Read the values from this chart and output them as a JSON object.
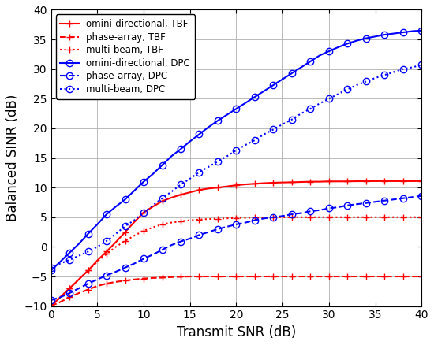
{
  "title": "",
  "xlabel": "Transmit SNR (dB)",
  "ylabel": "Balanced SINR (dB)",
  "xlim": [
    0,
    40
  ],
  "ylim": [
    -10,
    40
  ],
  "xticks": [
    0,
    5,
    10,
    15,
    20,
    25,
    30,
    35,
    40
  ],
  "yticks": [
    -10,
    -5,
    0,
    5,
    10,
    15,
    20,
    25,
    30,
    35,
    40
  ],
  "snr": [
    0,
    1,
    2,
    3,
    4,
    5,
    6,
    7,
    8,
    9,
    10,
    11,
    12,
    13,
    14,
    15,
    16,
    17,
    18,
    19,
    20,
    21,
    22,
    23,
    24,
    25,
    26,
    27,
    28,
    29,
    30,
    31,
    32,
    33,
    34,
    35,
    36,
    37,
    38,
    39,
    40
  ],
  "red_solid": [
    -10.0,
    -8.5,
    -7.0,
    -5.5,
    -4.0,
    -2.3,
    -0.8,
    0.8,
    2.5,
    4.2,
    5.8,
    6.8,
    7.7,
    8.3,
    8.8,
    9.2,
    9.6,
    9.85,
    10.0,
    10.2,
    10.4,
    10.55,
    10.65,
    10.75,
    10.82,
    10.87,
    10.9,
    10.95,
    11.0,
    11.0,
    11.05,
    11.05,
    11.05,
    11.08,
    11.08,
    11.1,
    11.1,
    11.1,
    11.1,
    11.1,
    11.1
  ],
  "red_dashed": [
    -10.0,
    -9.3,
    -8.5,
    -7.8,
    -7.2,
    -6.6,
    -6.2,
    -5.9,
    -5.7,
    -5.5,
    -5.35,
    -5.25,
    -5.18,
    -5.1,
    -5.05,
    -5.0,
    -5.0,
    -5.0,
    -5.0,
    -5.0,
    -5.0,
    -5.0,
    -5.0,
    -5.0,
    -5.0,
    -5.0,
    -5.0,
    -5.0,
    -5.0,
    -5.0,
    -5.0,
    -5.0,
    -5.0,
    -5.0,
    -5.0,
    -5.0,
    -5.0,
    -5.0,
    -5.0,
    -5.0,
    -5.0
  ],
  "red_dotted": [
    -10.0,
    -8.5,
    -7.0,
    -5.5,
    -4.0,
    -2.5,
    -1.2,
    0.0,
    1.0,
    1.9,
    2.7,
    3.3,
    3.8,
    4.1,
    4.3,
    4.5,
    4.6,
    4.7,
    4.75,
    4.82,
    4.87,
    4.9,
    4.93,
    4.95,
    4.97,
    5.0,
    5.0,
    5.0,
    5.0,
    5.0,
    5.0,
    5.0,
    5.0,
    5.0,
    5.0,
    5.0,
    5.0,
    5.0,
    5.0,
    5.0,
    5.0
  ],
  "blue_solid": [
    -4.0,
    -2.5,
    -1.0,
    0.5,
    2.2,
    3.8,
    5.5,
    6.8,
    8.0,
    9.5,
    11.0,
    12.3,
    13.8,
    15.3,
    16.5,
    17.8,
    19.0,
    20.2,
    21.3,
    22.3,
    23.3,
    24.3,
    25.3,
    26.3,
    27.3,
    28.3,
    29.3,
    30.3,
    31.3,
    32.3,
    33.0,
    33.7,
    34.3,
    34.8,
    35.2,
    35.5,
    35.8,
    36.0,
    36.2,
    36.4,
    36.5
  ],
  "blue_dashed": [
    -9.0,
    -8.5,
    -7.8,
    -7.0,
    -6.2,
    -5.5,
    -4.8,
    -4.2,
    -3.5,
    -2.8,
    -2.0,
    -1.3,
    -0.5,
    0.3,
    0.9,
    1.4,
    2.0,
    2.5,
    3.0,
    3.4,
    3.8,
    4.1,
    4.5,
    4.8,
    5.0,
    5.2,
    5.5,
    5.7,
    6.0,
    6.2,
    6.5,
    6.7,
    7.0,
    7.2,
    7.4,
    7.6,
    7.8,
    8.0,
    8.2,
    8.4,
    8.6
  ],
  "blue_dotted": [
    -3.5,
    -2.8,
    -2.2,
    -1.5,
    -0.8,
    0.0,
    1.0,
    2.2,
    3.5,
    4.5,
    5.8,
    7.0,
    8.2,
    9.3,
    10.5,
    11.5,
    12.6,
    13.5,
    14.4,
    15.3,
    16.3,
    17.2,
    18.0,
    19.0,
    19.8,
    20.7,
    21.5,
    22.5,
    23.3,
    24.2,
    25.0,
    25.8,
    26.6,
    27.3,
    27.9,
    28.5,
    29.0,
    29.5,
    30.0,
    30.3,
    30.7
  ],
  "red_color": "#FF0000",
  "blue_color": "#0000FF",
  "marker_every": 2,
  "marker_start": 0,
  "figsize": [
    5.5,
    4.38
  ],
  "dpi": 100
}
